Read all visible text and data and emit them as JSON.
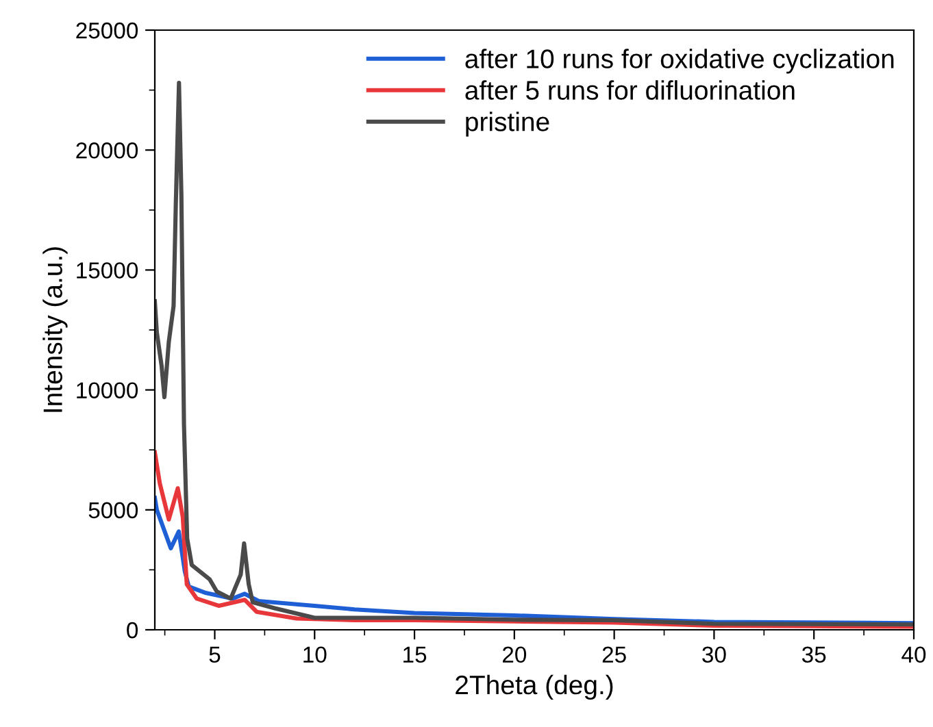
{
  "chart_data": {
    "type": "line",
    "xlabel": "2Theta (deg.)",
    "ylabel": "Intensity (a.u.)",
    "xlim": [
      2,
      40
    ],
    "xticks": [
      5,
      10,
      15,
      20,
      25,
      30,
      35,
      40
    ],
    "ylim": [
      0,
      25000
    ],
    "yticks": [
      0,
      5000,
      10000,
      15000,
      20000,
      25000
    ],
    "grid": false,
    "legend": "top right",
    "marker": "none",
    "line_style": "solid",
    "series": [
      {
        "name": "after 10 runs for oxidative cyclization",
        "color": "#1f5fd6",
        "x": [
          2.0,
          2.1,
          2.8,
          3.2,
          3.5,
          3.7,
          4.5,
          5.9,
          6.5,
          7.2,
          10,
          12,
          15,
          20,
          25,
          30,
          40
        ],
        "values": [
          5500,
          5000,
          3400,
          4100,
          2450,
          1800,
          1550,
          1300,
          1500,
          1200,
          1000,
          850,
          700,
          600,
          450,
          330,
          280
        ]
      },
      {
        "name": "after 5 runs for difluorination",
        "color": "#e8373b",
        "x": [
          2.0,
          2.25,
          2.7,
          3.15,
          3.4,
          3.6,
          4.1,
          5.2,
          6.5,
          7.1,
          9.1,
          12,
          15,
          20,
          25,
          30,
          40
        ],
        "values": [
          7400,
          6100,
          4600,
          5900,
          4700,
          1900,
          1300,
          1000,
          1250,
          750,
          470,
          400,
          400,
          350,
          300,
          170,
          130
        ]
      },
      {
        "name": "pristine",
        "color": "#4a4a4a",
        "x": [
          2.0,
          2.1,
          2.34,
          2.48,
          2.7,
          2.94,
          3.05,
          3.21,
          3.33,
          3.46,
          3.62,
          3.85,
          4.3,
          4.75,
          5.1,
          5.8,
          6.3,
          6.47,
          6.7,
          6.9,
          8,
          10,
          15,
          20,
          25,
          30,
          40
        ],
        "values": [
          13700,
          12400,
          11000,
          9700,
          12000,
          13500,
          17700,
          22800,
          18100,
          8560,
          3800,
          2700,
          2400,
          2100,
          1600,
          1300,
          2300,
          3600,
          1900,
          1150,
          900,
          500,
          500,
          420,
          400,
          250,
          220
        ]
      }
    ]
  }
}
